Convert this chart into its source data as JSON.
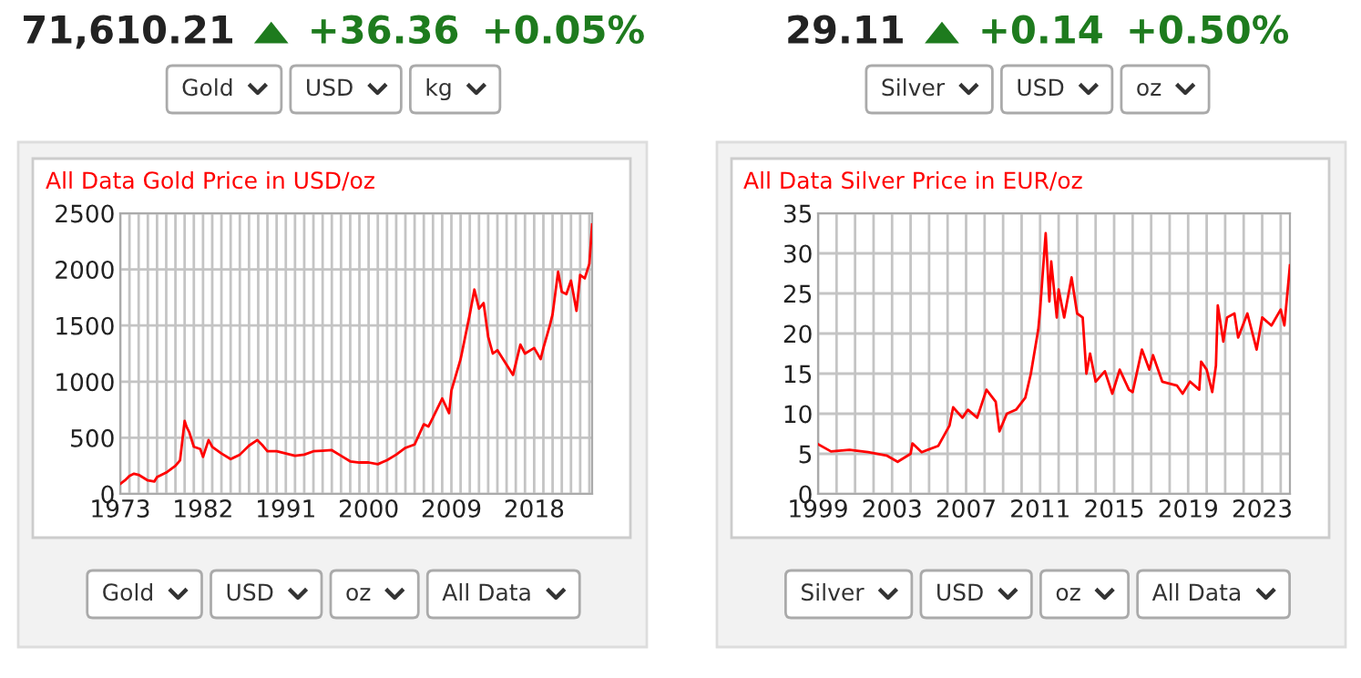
{
  "chart_data": [
    {
      "type": "other",
      "annotations": [
        "71,610.21",
        "+36.36",
        "+0.05%",
        "Gold",
        "USD",
        "kg",
        "Gold",
        "USD",
        "oz",
        "All Data"
      ]
    },
    {
      "type": "line",
      "title": "All Data Gold Price in USD/oz",
      "color": "#ff0000",
      "grid": true,
      "xlim": [
        1973,
        2024.3
      ],
      "ylim": [
        0,
        2500
      ],
      "yticks": [
        0,
        500,
        1000,
        1500,
        2000,
        2500
      ],
      "xticks": [
        1973,
        {
          "value": 1974,
          "label": null
        },
        {
          "value": 1975,
          "label": null
        },
        {
          "value": 1976,
          "label": null
        },
        {
          "value": 1977,
          "label": null
        },
        {
          "value": 1978,
          "label": null
        },
        {
          "value": 1979,
          "label": null
        },
        {
          "value": 1980,
          "label": null
        },
        {
          "value": 1981,
          "label": null
        },
        1982,
        {
          "value": 1983,
          "label": null
        },
        {
          "value": 1984,
          "label": null
        },
        {
          "value": 1985,
          "label": null
        },
        {
          "value": 1986,
          "label": null
        },
        {
          "value": 1987,
          "label": null
        },
        {
          "value": 1988,
          "label": null
        },
        {
          "value": 1989,
          "label": null
        },
        {
          "value": 1990,
          "label": null
        },
        1991,
        {
          "value": 1992,
          "label": null
        },
        {
          "value": 1993,
          "label": null
        },
        {
          "value": 1994,
          "label": null
        },
        {
          "value": 1995,
          "label": null
        },
        {
          "value": 1996,
          "label": null
        },
        {
          "value": 1997,
          "label": null
        },
        {
          "value": 1998,
          "label": null
        },
        {
          "value": 1999,
          "label": null
        },
        2000,
        {
          "value": 2001,
          "label": null
        },
        {
          "value": 2002,
          "label": null
        },
        {
          "value": 2003,
          "label": null
        },
        {
          "value": 2004,
          "label": null
        },
        {
          "value": 2005,
          "label": null
        },
        {
          "value": 2006,
          "label": null
        },
        {
          "value": 2007,
          "label": null
        },
        {
          "value": 2008,
          "label": null
        },
        2009,
        {
          "value": 2010,
          "label": null
        },
        {
          "value": 2011,
          "label": null
        },
        {
          "value": 2012,
          "label": null
        },
        {
          "value": 2013,
          "label": null
        },
        {
          "value": 2014,
          "label": null
        },
        {
          "value": 2015,
          "label": null
        },
        {
          "value": 2016,
          "label": null
        },
        {
          "value": 2017,
          "label": null
        },
        2018,
        {
          "value": 2019,
          "label": null
        },
        {
          "value": 2020,
          "label": null
        },
        {
          "value": 2021,
          "label": null
        },
        {
          "value": 2022,
          "label": null
        },
        {
          "value": 2023,
          "label": null
        },
        {
          "value": 2024,
          "label": null
        }
      ],
      "x": [
        1973,
        1973.5,
        1974,
        1974.5,
        1975,
        1976,
        1976.7,
        1977,
        1978,
        1979,
        1979.5,
        1980,
        1980.2,
        1980.5,
        1981,
        1981.7,
        1982,
        1982.6,
        1983,
        1984,
        1985,
        1986,
        1987,
        1987.9,
        1988.5,
        1989,
        1990,
        1991,
        1992,
        1993,
        1994,
        1995,
        1996,
        1997,
        1998,
        1999,
        2000,
        2001,
        2002,
        2003,
        2004,
        2005,
        2006,
        2006.5,
        2007,
        2008,
        2008.75,
        2009,
        2010,
        2011,
        2011.5,
        2012,
        2012.5,
        2013,
        2013.5,
        2014,
        2015,
        2015.7,
        2016.5,
        2017,
        2018,
        2018.7,
        2019,
        2019.7,
        2020,
        2020.6,
        2021,
        2021.5,
        2022,
        2022.6,
        2023,
        2023.5,
        2024,
        2024.3
      ],
      "values": [
        90,
        120,
        160,
        180,
        170,
        120,
        110,
        150,
        190,
        250,
        300,
        650,
        600,
        550,
        420,
        400,
        330,
        480,
        420,
        360,
        310,
        350,
        430,
        480,
        430,
        380,
        380,
        360,
        340,
        350,
        380,
        385,
        390,
        340,
        290,
        280,
        280,
        265,
        300,
        350,
        410,
        440,
        620,
        600,
        680,
        850,
        720,
        920,
        1200,
        1600,
        1820,
        1650,
        1700,
        1400,
        1250,
        1280,
        1150,
        1060,
        1330,
        1250,
        1300,
        1200,
        1300,
        1500,
        1600,
        1980,
        1800,
        1780,
        1900,
        1630,
        1950,
        1920,
        2050,
        2400
      ]
    },
    {
      "type": "other",
      "annotations": [
        "29.11",
        "+0.14",
        "+0.50%",
        "Silver",
        "USD",
        "oz",
        "Silver",
        "USD",
        "oz",
        "All Data"
      ]
    },
    {
      "type": "line",
      "title": "All Data Silver Price in EUR/oz",
      "color": "#ff0000",
      "grid": true,
      "xlim": [
        1999,
        2024.5
      ],
      "ylim": [
        0,
        35
      ],
      "yticks": [
        0,
        5,
        10,
        15,
        20,
        25,
        30,
        35
      ],
      "xticks": [
        1999,
        {
          "value": 2000,
          "label": null
        },
        {
          "value": 2001,
          "label": null
        },
        {
          "value": 2002,
          "label": null
        },
        2003,
        {
          "value": 2004,
          "label": null
        },
        {
          "value": 2005,
          "label": null
        },
        {
          "value": 2006,
          "label": null
        },
        2007,
        {
          "value": 2008,
          "label": null
        },
        {
          "value": 2009,
          "label": null
        },
        {
          "value": 2010,
          "label": null
        },
        2011,
        {
          "value": 2012,
          "label": null
        },
        {
          "value": 2013,
          "label": null
        },
        {
          "value": 2014,
          "label": null
        },
        2015,
        {
          "value": 2016,
          "label": null
        },
        {
          "value": 2017,
          "label": null
        },
        {
          "value": 2018,
          "label": null
        },
        2019,
        {
          "value": 2020,
          "label": null
        },
        {
          "value": 2021,
          "label": null
        },
        {
          "value": 2022,
          "label": null
        },
        2023,
        {
          "value": 2024,
          "label": null
        }
      ],
      "x": [
        1999.0,
        1999.7,
        2000.7,
        2001.7,
        2002.7,
        2003.3,
        2004.0,
        2004.1,
        2004.6,
        2005.5,
        2006.1,
        2006.3,
        2006.8,
        2007.1,
        2007.6,
        2008.1,
        2008.6,
        2008.8,
        2009.2,
        2009.7,
        2010.2,
        2010.5,
        2010.9,
        2011.0,
        2011.3,
        2011.5,
        2011.6,
        2011.9,
        2012.0,
        2012.3,
        2012.7,
        2013.0,
        2013.3,
        2013.5,
        2013.7,
        2014.0,
        2014.5,
        2014.9,
        2015.3,
        2015.8,
        2016.0,
        2016.5,
        2016.9,
        2017.1,
        2017.6,
        2018.4,
        2018.7,
        2019.1,
        2019.6,
        2019.7,
        2020.0,
        2020.3,
        2020.5,
        2020.6,
        2020.9,
        2021.1,
        2021.5,
        2021.7,
        2022.2,
        2022.7,
        2023.0,
        2023.5,
        2024.0,
        2024.2,
        2024.5
      ],
      "values": [
        6.2,
        5.3,
        5.5,
        5.2,
        4.8,
        4.0,
        5.0,
        6.3,
        5.2,
        6.0,
        8.5,
        10.8,
        9.5,
        10.5,
        9.5,
        13,
        11.5,
        7.8,
        10,
        10.5,
        12,
        15,
        20.5,
        23,
        32.5,
        24,
        29,
        22,
        25.5,
        22,
        27,
        22.5,
        22,
        15,
        17.5,
        14,
        15.3,
        12.5,
        15.5,
        13,
        12.7,
        18,
        15.5,
        17.3,
        14,
        13.5,
        12.5,
        14,
        13,
        16.5,
        15.5,
        12.7,
        16,
        23.5,
        19,
        22,
        22.5,
        19.5,
        22.5,
        18,
        22,
        21,
        23,
        21,
        28.5
      ]
    }
  ]
}
